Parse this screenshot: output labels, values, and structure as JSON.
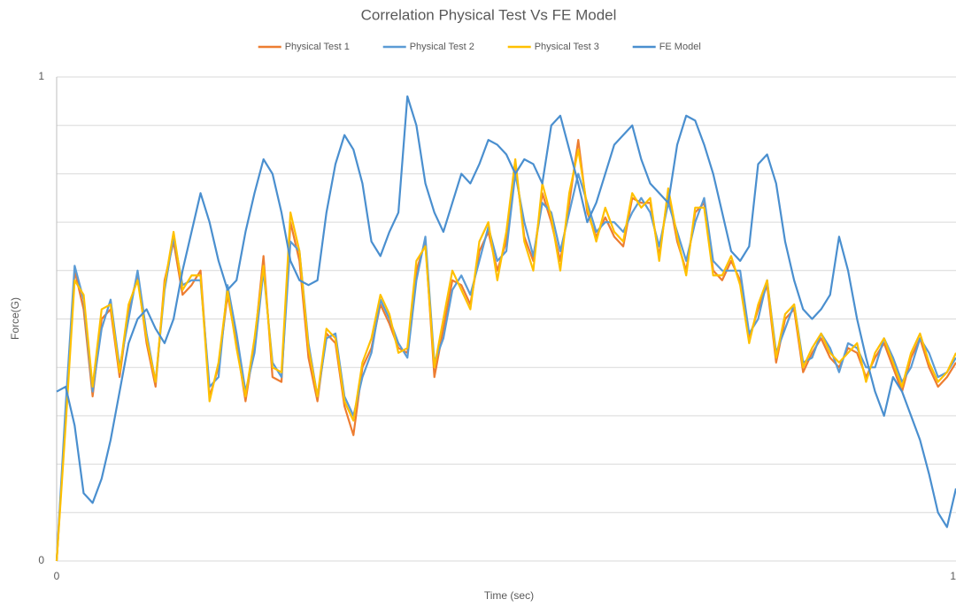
{
  "chart_data": {
    "type": "line",
    "title": "Correlation Physical Test Vs FE Model",
    "x_label": "Time (sec)",
    "y_label": "Force(G)",
    "xlim": [
      0,
      1
    ],
    "xticks": [
      0,
      1
    ],
    "ylim": [
      0,
      1
    ],
    "yticks": [
      0,
      1
    ],
    "minor_yticks": [
      0.1,
      0.2,
      0.3,
      0.4,
      0.5,
      0.6,
      0.7,
      0.8,
      0.9
    ],
    "grid": true,
    "legend": "top",
    "x": [
      0,
      0.01,
      0.02,
      0.03,
      0.04,
      0.05,
      0.06,
      0.07,
      0.08,
      0.09,
      0.1,
      0.11,
      0.12,
      0.13,
      0.14,
      0.15,
      0.16,
      0.17,
      0.18,
      0.19,
      0.2,
      0.21,
      0.22,
      0.23,
      0.24,
      0.25,
      0.26,
      0.27,
      0.28,
      0.29,
      0.3,
      0.31,
      0.32,
      0.33,
      0.34,
      0.35,
      0.36,
      0.37,
      0.38,
      0.39,
      0.4,
      0.41,
      0.42,
      0.43,
      0.44,
      0.45,
      0.46,
      0.47,
      0.48,
      0.49,
      0.5,
      0.51,
      0.52,
      0.53,
      0.54,
      0.55,
      0.56,
      0.57,
      0.58,
      0.59,
      0.6,
      0.61,
      0.62,
      0.63,
      0.64,
      0.65,
      0.66,
      0.67,
      0.68,
      0.69,
      0.7,
      0.71,
      0.72,
      0.73,
      0.74,
      0.75,
      0.76,
      0.77,
      0.78,
      0.79,
      0.8,
      0.81,
      0.82,
      0.83,
      0.84,
      0.85,
      0.86,
      0.87,
      0.88,
      0.89,
      0.9,
      0.91,
      0.92,
      0.93,
      0.94,
      0.95,
      0.96,
      0.97,
      0.98,
      0.99,
      1
    ],
    "series": [
      {
        "name": "Physical Test 1",
        "color": "#ed7d31",
        "values": [
          0,
          0.3,
          0.6,
          0.52,
          0.34,
          0.5,
          0.52,
          0.38,
          0.52,
          0.59,
          0.45,
          0.36,
          0.58,
          0.66,
          0.55,
          0.57,
          0.6,
          0.34,
          0.4,
          0.55,
          0.45,
          0.33,
          0.45,
          0.63,
          0.38,
          0.37,
          0.7,
          0.62,
          0.42,
          0.33,
          0.47,
          0.45,
          0.32,
          0.26,
          0.4,
          0.44,
          0.53,
          0.49,
          0.44,
          0.43,
          0.6,
          0.66,
          0.38,
          0.48,
          0.58,
          0.57,
          0.53,
          0.64,
          0.68,
          0.6,
          0.66,
          0.82,
          0.67,
          0.62,
          0.76,
          0.7,
          0.62,
          0.74,
          0.87,
          0.72,
          0.67,
          0.71,
          0.67,
          0.65,
          0.75,
          0.74,
          0.74,
          0.63,
          0.76,
          0.66,
          0.6,
          0.72,
          0.74,
          0.6,
          0.58,
          0.62,
          0.58,
          0.46,
          0.52,
          0.57,
          0.41,
          0.5,
          0.52,
          0.39,
          0.43,
          0.46,
          0.42,
          0.4,
          0.44,
          0.43,
          0.38,
          0.42,
          0.45,
          0.4,
          0.35,
          0.42,
          0.46,
          0.4,
          0.36,
          0.38,
          0.41
        ]
      },
      {
        "name": "Physical Test 2",
        "color": "#5b9bd5",
        "values": [
          0,
          0.32,
          0.61,
          0.54,
          0.35,
          0.48,
          0.54,
          0.4,
          0.5,
          0.6,
          0.47,
          0.37,
          0.56,
          0.67,
          0.57,
          0.58,
          0.58,
          0.36,
          0.38,
          0.57,
          0.47,
          0.35,
          0.43,
          0.6,
          0.41,
          0.38,
          0.66,
          0.64,
          0.45,
          0.34,
          0.46,
          0.47,
          0.34,
          0.3,
          0.38,
          0.43,
          0.54,
          0.5,
          0.45,
          0.42,
          0.58,
          0.67,
          0.41,
          0.46,
          0.56,
          0.59,
          0.55,
          0.62,
          0.69,
          0.62,
          0.64,
          0.8,
          0.7,
          0.63,
          0.74,
          0.72,
          0.64,
          0.72,
          0.8,
          0.74,
          0.68,
          0.7,
          0.7,
          0.68,
          0.72,
          0.75,
          0.72,
          0.65,
          0.74,
          0.68,
          0.62,
          0.7,
          0.75,
          0.62,
          0.6,
          0.6,
          0.6,
          0.47,
          0.5,
          0.58,
          0.43,
          0.48,
          0.53,
          0.41,
          0.42,
          0.47,
          0.44,
          0.39,
          0.45,
          0.44,
          0.4,
          0.4,
          0.46,
          0.42,
          0.37,
          0.4,
          0.46,
          0.43,
          0.38,
          0.39,
          0.42
        ]
      },
      {
        "name": "Physical Test 3",
        "color": "#ffc000",
        "values": [
          0,
          0.28,
          0.58,
          0.55,
          0.36,
          0.52,
          0.53,
          0.39,
          0.53,
          0.58,
          0.46,
          0.37,
          0.57,
          0.68,
          0.56,
          0.59,
          0.59,
          0.33,
          0.41,
          0.56,
          0.44,
          0.34,
          0.46,
          0.61,
          0.4,
          0.39,
          0.72,
          0.64,
          0.44,
          0.34,
          0.48,
          0.46,
          0.33,
          0.29,
          0.41,
          0.46,
          0.55,
          0.51,
          0.43,
          0.44,
          0.62,
          0.65,
          0.4,
          0.5,
          0.6,
          0.56,
          0.52,
          0.66,
          0.7,
          0.58,
          0.68,
          0.83,
          0.66,
          0.6,
          0.78,
          0.71,
          0.6,
          0.76,
          0.85,
          0.73,
          0.66,
          0.73,
          0.68,
          0.66,
          0.76,
          0.73,
          0.75,
          0.62,
          0.77,
          0.67,
          0.59,
          0.73,
          0.73,
          0.59,
          0.59,
          0.63,
          0.57,
          0.45,
          0.53,
          0.58,
          0.42,
          0.51,
          0.53,
          0.4,
          0.44,
          0.47,
          0.43,
          0.41,
          0.43,
          0.45,
          0.37,
          0.43,
          0.46,
          0.41,
          0.36,
          0.43,
          0.47,
          0.41,
          0.37,
          0.39,
          0.43
        ]
      },
      {
        "name": "FE Model",
        "color": "#4a8fcf",
        "values": [
          0.35,
          0.36,
          0.28,
          0.14,
          0.12,
          0.17,
          0.25,
          0.35,
          0.45,
          0.5,
          0.52,
          0.48,
          0.45,
          0.5,
          0.6,
          0.68,
          0.76,
          0.7,
          0.62,
          0.56,
          0.58,
          0.68,
          0.76,
          0.83,
          0.8,
          0.72,
          0.62,
          0.58,
          0.57,
          0.58,
          0.72,
          0.82,
          0.88,
          0.85,
          0.78,
          0.66,
          0.63,
          0.68,
          0.72,
          0.96,
          0.9,
          0.78,
          0.72,
          0.68,
          0.74,
          0.8,
          0.78,
          0.82,
          0.87,
          0.86,
          0.84,
          0.8,
          0.83,
          0.82,
          0.78,
          0.9,
          0.92,
          0.85,
          0.78,
          0.7,
          0.74,
          0.8,
          0.86,
          0.88,
          0.9,
          0.83,
          0.78,
          0.76,
          0.74,
          0.86,
          0.92,
          0.91,
          0.86,
          0.8,
          0.72,
          0.64,
          0.62,
          0.65,
          0.82,
          0.84,
          0.78,
          0.66,
          0.58,
          0.52,
          0.5,
          0.52,
          0.55,
          0.67,
          0.6,
          0.5,
          0.42,
          0.35,
          0.3,
          0.38,
          0.35,
          0.3,
          0.25,
          0.18,
          0.1,
          0.07,
          0.15
        ]
      }
    ]
  }
}
